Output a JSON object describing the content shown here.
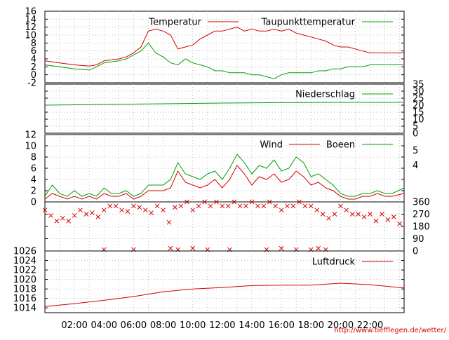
{
  "x_ticks": [
    "02:00",
    "04:00",
    "06:00",
    "08:00",
    "10:00",
    "12:00",
    "14:00",
    "16:00",
    "18:00",
    "20:00",
    "22:00"
  ],
  "source_url": "http://www.tiefflegen.de/wetter/",
  "colors": {
    "red": "#d40000",
    "green": "#00a000",
    "black": "#000000",
    "grid": "#b0b0b0"
  },
  "chart_data": [
    {
      "type": "line",
      "panel": "temperature",
      "x_range_hours": [
        0,
        24.3
      ],
      "ylim": [
        -2,
        16
      ],
      "yticks": [
        "16",
        "14",
        "12",
        "10",
        "8",
        "6",
        "4",
        "2",
        "0",
        "-2"
      ],
      "legend_position": "top",
      "series": [
        {
          "name": "Temperatur",
          "color": "#d40000",
          "x": [
            0,
            1,
            2,
            3,
            3.5,
            4,
            5,
            5.5,
            6,
            6.5,
            7,
            7.5,
            8,
            8.5,
            9,
            9.5,
            10,
            10.5,
            11,
            11.5,
            12,
            12.5,
            13,
            13.5,
            14,
            14.5,
            15,
            15.5,
            16,
            16.5,
            17,
            17.5,
            18,
            18.5,
            19,
            19.5,
            20,
            20.5,
            21,
            21.5,
            22,
            22.5,
            23,
            23.5,
            24.3
          ],
          "y": [
            3.5,
            3,
            2.5,
            2.2,
            2.5,
            3.5,
            4,
            4.5,
            5.5,
            7,
            11,
            11.5,
            11,
            10,
            6.5,
            7,
            7.5,
            9,
            10,
            11,
            11,
            11.5,
            12,
            11,
            11.5,
            11,
            11,
            11.5,
            11,
            11.5,
            10.5,
            10,
            9.5,
            9,
            8.5,
            7.5,
            7,
            7,
            6.5,
            6,
            5.5,
            5.5,
            5.5,
            5.5,
            5.5
          ]
        },
        {
          "name": "Taupunkttemperatur",
          "color": "#00a000",
          "x": [
            0,
            1,
            2,
            3,
            3.5,
            4,
            5,
            5.5,
            6,
            6.5,
            7,
            7.5,
            8,
            8.5,
            9,
            9.5,
            10,
            10.5,
            11,
            11.5,
            12,
            12.5,
            13,
            13.5,
            14,
            14.5,
            15,
            15.5,
            16,
            16.5,
            17,
            17.5,
            18,
            18.5,
            19,
            19.5,
            20,
            20.5,
            21,
            21.5,
            22,
            22.5,
            23,
            23.5,
            24.3
          ],
          "y": [
            2.5,
            2,
            1.5,
            1.2,
            2,
            3,
            3.5,
            4,
            5,
            6,
            8,
            5.5,
            4.5,
            3,
            2.5,
            4,
            3,
            2.5,
            2,
            1,
            1,
            0.5,
            0.5,
            0.5,
            0,
            0,
            -0.5,
            -1,
            0,
            0.5,
            0.5,
            0.5,
            0.5,
            1,
            1,
            1.5,
            1.5,
            2,
            2,
            2,
            2.5,
            2.5,
            2.5,
            2.5,
            2.5
          ]
        }
      ]
    },
    {
      "type": "line",
      "panel": "precipitation",
      "x_range_hours": [
        0,
        24.3
      ],
      "ylim": [
        0,
        35
      ],
      "yticks": [
        "35",
        "30",
        "25",
        "20",
        "15",
        "10",
        "5",
        "0"
      ],
      "legend_position": "top-right",
      "series": [
        {
          "name": "Niederschlag",
          "color": "#00a000",
          "x": [
            0,
            4,
            8,
            12,
            16,
            20,
            24.3
          ],
          "y": [
            20,
            20.5,
            21,
            21.5,
            21.8,
            22,
            22
          ]
        }
      ]
    },
    {
      "type": "line",
      "panel": "wind",
      "x_range_hours": [
        0,
        24.3
      ],
      "ylim": [
        0,
        12
      ],
      "yticks": [
        "12",
        "10",
        "8",
        "6",
        "4",
        "2",
        "0"
      ],
      "right_labels": [
        "5",
        "4"
      ],
      "legend_position": "top",
      "series": [
        {
          "name": "Wind",
          "color": "#d40000",
          "x": [
            0,
            0.5,
            1,
            1.5,
            2,
            2.5,
            3,
            3.5,
            4,
            4.5,
            5,
            5.5,
            6,
            6.5,
            7,
            7.5,
            8,
            8.5,
            9,
            9.5,
            10,
            10.5,
            11,
            11.5,
            12,
            12.5,
            13,
            13.5,
            14,
            14.5,
            15,
            15.5,
            16,
            16.5,
            17,
            17.5,
            18,
            18.5,
            19,
            19.5,
            20,
            20.5,
            21,
            21.5,
            22,
            22.5,
            23,
            23.5,
            24.3
          ],
          "y": [
            0.5,
            1.5,
            1,
            0.5,
            1,
            0.5,
            1,
            0.5,
            1.5,
            1,
            1,
            1.5,
            0.5,
            1,
            2,
            2,
            2,
            2.5,
            5.5,
            3.5,
            3,
            2.5,
            3,
            4,
            2.5,
            4,
            6.5,
            5,
            3,
            4.5,
            4,
            5,
            3.5,
            4,
            5.5,
            4.5,
            3,
            3.5,
            2.5,
            2,
            1,
            0.5,
            0.5,
            1,
            1,
            1.5,
            1,
            1,
            1.5
          ]
        },
        {
          "name": "Boeen",
          "color": "#00a000",
          "x": [
            0,
            0.5,
            1,
            1.5,
            2,
            2.5,
            3,
            3.5,
            4,
            4.5,
            5,
            5.5,
            6,
            6.5,
            7,
            7.5,
            8,
            8.5,
            9,
            9.5,
            10,
            10.5,
            11,
            11.5,
            12,
            12.5,
            13,
            13.5,
            14,
            14.5,
            15,
            15.5,
            16,
            16.5,
            17,
            17.5,
            18,
            18.5,
            19,
            19.5,
            20,
            20.5,
            21,
            21.5,
            22,
            22.5,
            23,
            23.5,
            24.3
          ],
          "y": [
            1,
            3,
            1.5,
            1,
            2,
            1,
            1.5,
            1,
            2.5,
            1.5,
            1.5,
            2,
            1,
            1.5,
            3,
            3,
            3,
            4,
            7,
            5,
            4.5,
            4,
            5,
            5.5,
            4,
            6,
            8.5,
            7,
            5,
            6.5,
            6,
            7.5,
            5.5,
            6,
            8,
            7,
            4.5,
            5,
            4,
            3,
            1.5,
            1,
            1,
            1.5,
            1.5,
            2,
            1.5,
            1.5,
            2.5
          ]
        }
      ]
    },
    {
      "type": "scatter",
      "panel": "wind_direction",
      "x_range_hours": [
        0,
        24.3
      ],
      "ylim": [
        0,
        360
      ],
      "yticks": [
        "360",
        "270",
        "180",
        "90",
        "0"
      ],
      "series": [
        {
          "name": "",
          "color": "#d40000",
          "marker": "x",
          "x": [
            0,
            0.4,
            0.8,
            1.2,
            1.6,
            2,
            2.4,
            2.8,
            3.2,
            3.6,
            4,
            4.4,
            4.8,
            5.2,
            5.6,
            6,
            6.4,
            6.8,
            7.2,
            7.6,
            8,
            8.4,
            8.8,
            9.2,
            9.6,
            10,
            10.4,
            10.8,
            11.2,
            11.6,
            12,
            12.4,
            12.8,
            13.2,
            13.6,
            14,
            14.4,
            14.8,
            15.2,
            15.6,
            16,
            16.4,
            16.8,
            17.2,
            17.6,
            18,
            18.4,
            18.8,
            19.2,
            19.6,
            20,
            20.4,
            20.8,
            21.2,
            21.6,
            22,
            22.4,
            22.8,
            23.2,
            23.6,
            24,
            4,
            6,
            8.5,
            9,
            10,
            11,
            12.5,
            15,
            16,
            17,
            18,
            18.5,
            19
          ],
          "y": [
            300,
            260,
            220,
            240,
            220,
            260,
            300,
            270,
            280,
            250,
            300,
            330,
            330,
            300,
            290,
            330,
            320,
            300,
            280,
            330,
            300,
            210,
            320,
            330,
            360,
            300,
            330,
            360,
            330,
            360,
            330,
            330,
            360,
            330,
            330,
            360,
            330,
            330,
            360,
            330,
            300,
            330,
            330,
            360,
            330,
            330,
            300,
            270,
            240,
            270,
            330,
            300,
            270,
            270,
            250,
            270,
            220,
            270,
            230,
            250,
            200,
            10,
            10,
            20,
            10,
            20,
            10,
            10,
            10,
            20,
            10,
            10,
            20,
            10
          ]
        }
      ]
    },
    {
      "type": "line",
      "panel": "pressure",
      "x_range_hours": [
        0,
        24.3
      ],
      "ylim": [
        1013,
        1026
      ],
      "yticks": [
        "1026",
        "1024",
        "1022",
        "1020",
        "1018",
        "1016",
        "1014"
      ],
      "legend_position": "top-right",
      "series": [
        {
          "name": "Luftdruck",
          "color": "#d40000",
          "x": [
            0,
            2,
            4,
            6,
            8,
            10,
            12,
            14,
            16,
            18,
            20,
            22,
            24.3
          ],
          "y": [
            1014.3,
            1014.9,
            1015.6,
            1016.4,
            1017.4,
            1018.0,
            1018.3,
            1018.7,
            1018.8,
            1018.8,
            1019.2,
            1018.9,
            1018.2
          ]
        }
      ]
    }
  ]
}
